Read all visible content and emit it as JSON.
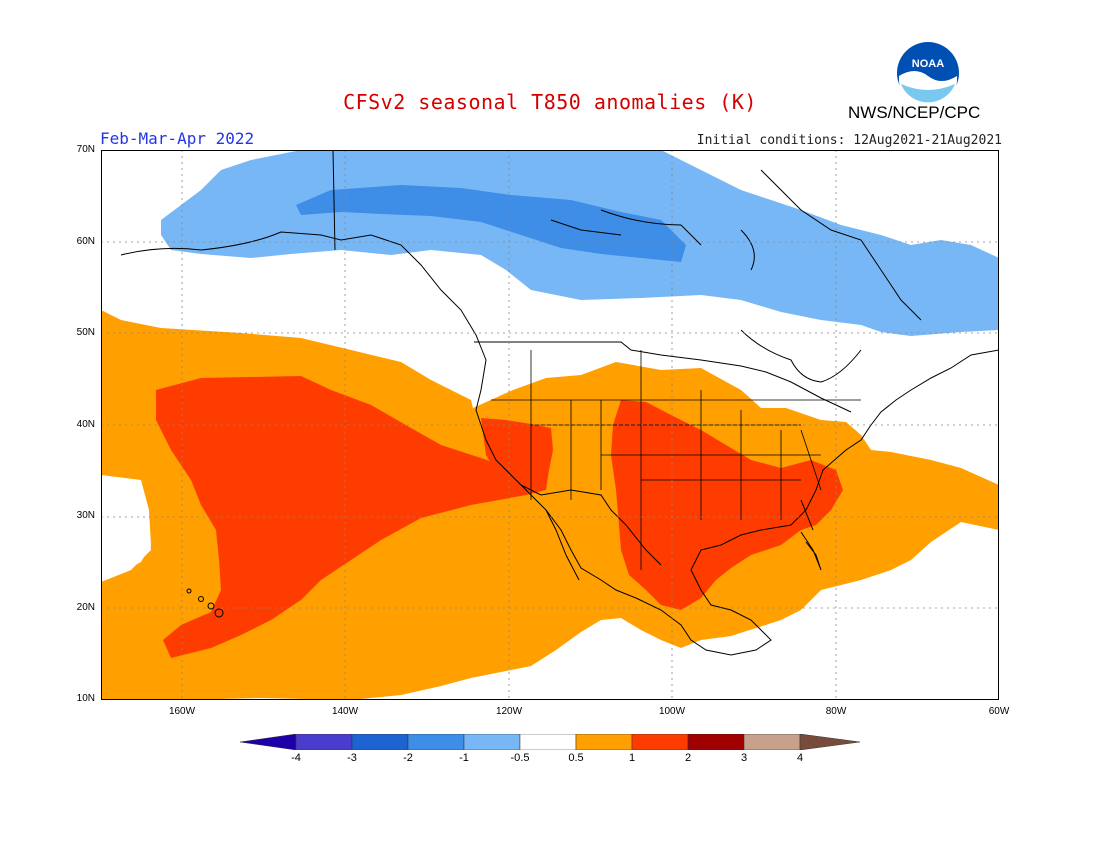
{
  "title": "CFSv2 seasonal T850 anomalies (K)",
  "agency": "NWS/NCEP/CPC",
  "logo_text": "NOAA",
  "season": "Feb-Mar-Apr 2022",
  "initial_conditions": "Initial conditions: 12Aug2021-21Aug2021",
  "lat_labels": [
    "70N",
    "60N",
    "50N",
    "40N",
    "30N",
    "20N",
    "10N"
  ],
  "lon_labels": [
    "160W",
    "140W",
    "120W",
    "100W",
    "80W",
    "60W"
  ],
  "colorbar": {
    "labels": [
      "-4",
      "-3",
      "-2",
      "-1",
      "-0.5",
      "0.5",
      "1",
      "2",
      "3",
      "4"
    ],
    "colors": [
      "#1f00a8",
      "#4a3ccc",
      "#1e63d2",
      "#3e8de6",
      "#78b7f6",
      "#ffffff",
      "#ff9f00",
      "#ff3c00",
      "#a00000",
      "#c8a08c",
      "#784c3c"
    ]
  }
}
